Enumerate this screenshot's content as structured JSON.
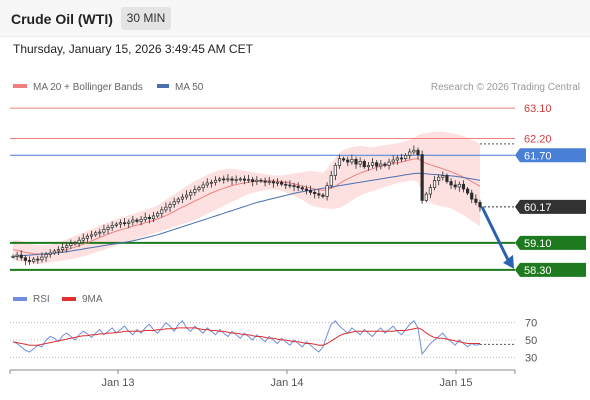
{
  "header": {
    "instrument": "Crude Oil (WTI)",
    "timeframe": "30 MIN",
    "timestamp": "Thursday, January 15, 2026 3:49:45 AM CET"
  },
  "credit": "Research © 2026 Trading Central",
  "colors": {
    "resistance": "#f08080",
    "pivot": "#4a7fd6",
    "support": "#1e7a1e",
    "current_price": "#333333",
    "ma20": "#f08080",
    "bollinger_fill": "#fde0e0",
    "ma50": "#4a6fb0",
    "candle_up": "#2a2a2a",
    "candle_down": "#2a2a2a",
    "rsi": "#6f8fdc",
    "rsi_ma": "#e03030",
    "forecast_arrow": "#2a62b0"
  },
  "chart_data": [
    {
      "type": "candlestick",
      "legend": [
        {
          "label": "MA 20 + Bollinger Bands",
          "color": "#f08080"
        },
        {
          "label": "MA 50",
          "color": "#4a6fb0"
        }
      ],
      "x_ticks": [
        "Jan 13",
        "Jan 14",
        "Jan 15"
      ],
      "ylim": [
        58.0,
        63.4
      ],
      "levels": [
        {
          "value": 63.1,
          "label": "63.10",
          "kind": "resistance"
        },
        {
          "value": 62.2,
          "label": "62.20",
          "kind": "resistance"
        },
        {
          "value": 61.7,
          "label": "61.70",
          "kind": "pivot"
        },
        {
          "value": 60.17,
          "label": "60.17",
          "kind": "current"
        },
        {
          "value": 59.1,
          "label": "59.10",
          "kind": "support"
        },
        {
          "value": 58.3,
          "label": "58.30",
          "kind": "support"
        }
      ],
      "forecast": {
        "from": 60.17,
        "to": 58.3
      },
      "close": [
        58.7,
        58.74,
        58.66,
        58.58,
        58.55,
        58.62,
        58.6,
        58.68,
        58.76,
        58.8,
        58.86,
        58.9,
        58.96,
        59.02,
        59.08,
        59.1,
        59.18,
        59.24,
        59.3,
        59.34,
        59.4,
        59.42,
        59.5,
        59.56,
        59.62,
        59.66,
        59.7,
        59.68,
        59.72,
        59.78,
        59.74,
        59.8,
        59.86,
        59.82,
        59.9,
        59.98,
        60.08,
        60.16,
        60.24,
        60.32,
        60.4,
        60.46,
        60.52,
        60.6,
        60.68,
        60.74,
        60.82,
        60.88,
        60.9,
        60.96,
        61.0,
        60.98,
        61.0,
        60.96,
        60.98,
        61.0,
        60.96,
        60.98,
        60.92,
        60.96,
        60.94,
        60.9,
        60.92,
        60.88,
        60.9,
        60.84,
        60.82,
        60.8,
        60.78,
        60.74,
        60.7,
        60.66,
        60.6,
        60.56,
        60.52,
        60.48,
        60.8,
        61.1,
        61.4,
        61.6,
        61.56,
        61.5,
        61.58,
        61.44,
        61.52,
        61.36,
        61.4,
        61.48,
        61.38,
        61.44,
        61.4,
        61.5,
        61.56,
        61.62,
        61.6,
        61.7,
        61.8,
        61.85,
        61.72,
        60.36,
        60.55,
        60.74,
        60.95,
        61.05,
        61.1,
        60.92,
        60.82,
        60.76,
        60.84,
        60.7,
        60.58,
        60.4,
        60.3,
        60.17
      ],
      "ma20": [
        58.9,
        58.88,
        58.85,
        58.82,
        58.8,
        58.78,
        58.77,
        58.76,
        58.77,
        58.78,
        58.8,
        58.83,
        58.86,
        58.9,
        58.94,
        58.98,
        59.02,
        59.06,
        59.11,
        59.16,
        59.21,
        59.26,
        59.31,
        59.36,
        59.41,
        59.45,
        59.49,
        59.52,
        59.56,
        59.6,
        59.63,
        59.66,
        59.7,
        59.73,
        59.77,
        59.81,
        59.86,
        59.91,
        59.97,
        60.03,
        60.1,
        60.16,
        60.22,
        60.28,
        60.34,
        60.4,
        60.46,
        60.52,
        60.58,
        60.63,
        60.68,
        60.72,
        60.76,
        60.8,
        60.83,
        60.86,
        60.88,
        60.9,
        60.92,
        60.93,
        60.94,
        60.94,
        60.95,
        60.94,
        60.93,
        60.92,
        60.9,
        60.88,
        60.85,
        60.82,
        60.79,
        60.76,
        60.73,
        60.7,
        60.68,
        60.66,
        60.68,
        60.72,
        60.78,
        60.86,
        60.94,
        61.0,
        61.06,
        61.12,
        61.17,
        61.22,
        61.26,
        61.3,
        61.34,
        61.38,
        61.4,
        61.43,
        61.46,
        61.48,
        61.5,
        61.53,
        61.56,
        61.59,
        61.6,
        61.52,
        61.46,
        61.42,
        61.38,
        61.34,
        61.3,
        61.26,
        61.21,
        61.16,
        61.11,
        61.05,
        60.99,
        60.92,
        60.85,
        60.78
      ],
      "bb_upper": [
        59.2,
        59.18,
        59.15,
        59.12,
        59.08,
        59.05,
        59.03,
        59.02,
        59.03,
        59.05,
        59.08,
        59.12,
        59.16,
        59.21,
        59.26,
        59.31,
        59.36,
        59.41,
        59.46,
        59.51,
        59.56,
        59.61,
        59.66,
        59.7,
        59.75,
        59.8,
        59.85,
        59.88,
        59.92,
        59.96,
        60.0,
        60.04,
        60.08,
        60.12,
        60.16,
        60.22,
        60.3,
        60.38,
        60.46,
        60.54,
        60.62,
        60.7,
        60.78,
        60.86,
        60.94,
        61.0,
        61.06,
        61.12,
        61.18,
        61.22,
        61.26,
        61.28,
        61.3,
        61.3,
        61.28,
        61.26,
        61.24,
        61.22,
        61.2,
        61.18,
        61.16,
        61.14,
        61.12,
        61.1,
        61.1,
        61.1,
        61.12,
        61.14,
        61.16,
        61.18,
        61.2,
        61.22,
        61.24,
        61.22,
        61.2,
        61.18,
        61.3,
        61.46,
        61.62,
        61.78,
        61.86,
        61.9,
        61.94,
        61.96,
        61.98,
        61.96,
        61.94,
        61.94,
        61.96,
        61.98,
        62.0,
        62.02,
        62.04,
        62.06,
        62.08,
        62.12,
        62.16,
        62.22,
        62.3,
        62.34,
        62.36,
        62.38,
        62.4,
        62.4,
        62.4,
        62.38,
        62.36,
        62.34,
        62.3,
        62.26,
        62.22,
        62.16,
        62.1,
        62.04
      ],
      "bb_lower": [
        58.6,
        58.58,
        58.55,
        58.52,
        58.5,
        58.48,
        58.47,
        58.48,
        58.5,
        58.52,
        58.54,
        58.56,
        58.58,
        58.6,
        58.62,
        58.64,
        58.67,
        58.7,
        58.74,
        58.78,
        58.82,
        58.86,
        58.9,
        58.94,
        58.98,
        59.02,
        59.06,
        59.1,
        59.14,
        59.18,
        59.22,
        59.26,
        59.3,
        59.34,
        59.38,
        59.42,
        59.46,
        59.5,
        59.54,
        59.58,
        59.62,
        59.66,
        59.7,
        59.74,
        59.78,
        59.84,
        59.9,
        59.96,
        60.02,
        60.08,
        60.14,
        60.2,
        60.26,
        60.32,
        60.38,
        60.44,
        60.5,
        60.54,
        60.58,
        60.62,
        60.64,
        60.66,
        60.68,
        60.68,
        60.66,
        60.64,
        60.6,
        60.56,
        60.5,
        60.44,
        60.38,
        60.3,
        60.22,
        60.18,
        60.16,
        60.14,
        60.12,
        60.1,
        60.12,
        60.14,
        60.2,
        60.28,
        60.36,
        60.44,
        60.5,
        60.56,
        60.6,
        60.64,
        60.68,
        60.72,
        60.76,
        60.8,
        60.84,
        60.88,
        60.9,
        60.92,
        60.94,
        60.96,
        60.9,
        60.6,
        60.4,
        60.3,
        60.24,
        60.2,
        60.18,
        60.16,
        60.12,
        60.06,
        60.0,
        59.92,
        59.84,
        59.76,
        59.68,
        59.6
      ],
      "ma50": [
        58.7,
        58.71,
        58.72,
        58.73,
        58.74,
        58.75,
        58.76,
        58.77,
        58.78,
        58.79,
        58.8,
        58.81,
        58.82,
        58.84,
        58.86,
        58.88,
        58.9,
        58.92,
        58.94,
        58.96,
        58.98,
        59.0,
        59.02,
        59.04,
        59.06,
        59.08,
        59.1,
        59.12,
        59.14,
        59.16,
        59.19,
        59.22,
        59.25,
        59.28,
        59.31,
        59.34,
        59.38,
        59.42,
        59.46,
        59.5,
        59.54,
        59.58,
        59.62,
        59.66,
        59.7,
        59.74,
        59.78,
        59.82,
        59.86,
        59.9,
        59.94,
        59.98,
        60.02,
        60.06,
        60.1,
        60.14,
        60.18,
        60.22,
        60.26,
        60.3,
        60.33,
        60.36,
        60.39,
        60.42,
        60.45,
        60.48,
        60.51,
        60.54,
        60.57,
        60.6,
        60.62,
        60.64,
        60.66,
        60.68,
        60.7,
        60.72,
        60.74,
        60.76,
        60.78,
        60.8,
        60.82,
        60.84,
        60.86,
        60.88,
        60.9,
        60.92,
        60.94,
        60.96,
        60.98,
        61.0,
        61.02,
        61.04,
        61.06,
        61.08,
        61.1,
        61.12,
        61.14,
        61.16,
        61.17,
        61.16,
        61.15,
        61.14,
        61.13,
        61.12,
        61.11,
        61.1,
        61.09,
        61.08,
        61.06,
        61.04,
        61.02,
        61.0,
        60.98,
        60.96
      ]
    },
    {
      "type": "line",
      "legend": [
        {
          "label": "RSI",
          "color": "#6f8fdc"
        },
        {
          "label": "9MA",
          "color": "#e03030"
        }
      ],
      "ylim": [
        20,
        80
      ],
      "y_ticks": [
        "70",
        "50",
        "30"
      ],
      "rsi": [
        48,
        46,
        42,
        38,
        36,
        40,
        44,
        42,
        50,
        54,
        52,
        48,
        55,
        58,
        54,
        50,
        56,
        60,
        57,
        53,
        58,
        62,
        56,
        60,
        64,
        58,
        62,
        66,
        60,
        56,
        62,
        58,
        64,
        68,
        62,
        58,
        64,
        70,
        66,
        60,
        68,
        72,
        64,
        60,
        66,
        62,
        58,
        64,
        60,
        56,
        62,
        58,
        54,
        60,
        56,
        52,
        58,
        54,
        50,
        56,
        52,
        48,
        54,
        50,
        46,
        52,
        48,
        44,
        50,
        46,
        42,
        48,
        44,
        40,
        36,
        42,
        56,
        68,
        72,
        66,
        62,
        58,
        64,
        60,
        56,
        62,
        58,
        54,
        60,
        64,
        58,
        62,
        66,
        60,
        56,
        62,
        68,
        72,
        64,
        34,
        40,
        46,
        50,
        54,
        58,
        52,
        48,
        44,
        50,
        46,
        42,
        46,
        44,
        45
      ],
      "ma9": [
        48,
        47,
        46,
        45,
        44,
        44,
        44,
        45,
        46,
        47,
        48,
        49,
        50,
        51,
        52,
        53,
        54,
        55,
        55,
        56,
        56,
        57,
        57,
        58,
        58,
        59,
        59,
        60,
        60,
        60,
        60,
        60,
        61,
        61,
        61,
        62,
        62,
        63,
        63,
        63,
        64,
        64,
        64,
        64,
        64,
        63,
        62,
        62,
        61,
        61,
        60,
        60,
        59,
        58,
        58,
        57,
        56,
        56,
        55,
        54,
        54,
        53,
        52,
        52,
        51,
        50,
        50,
        49,
        48,
        48,
        47,
        46,
        46,
        45,
        44,
        44,
        46,
        49,
        52,
        55,
        57,
        58,
        59,
        60,
        60,
        60,
        60,
        60,
        60,
        60,
        60,
        60,
        60,
        61,
        61,
        61,
        62,
        63,
        64,
        62,
        58,
        55,
        53,
        52,
        52,
        51,
        50,
        49,
        48,
        47,
        46,
        46,
        46,
        46
      ]
    }
  ]
}
